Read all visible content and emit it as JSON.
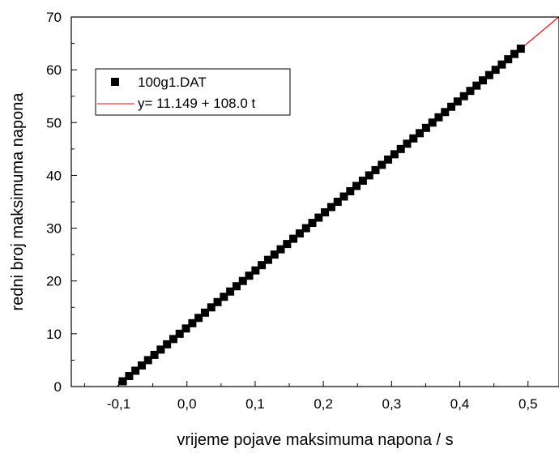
{
  "chart_data": {
    "type": "scatter",
    "xlabel": "vrijeme pojave maksimuma napona / s",
    "ylabel": "redni broj maksimuma napona",
    "xlim": [
      -0.1695,
      0.5454
    ],
    "ylim": [
      0,
      70
    ],
    "x_ticks": [
      -0.1,
      0.0,
      0.1,
      0.2,
      0.3,
      0.4,
      0.5
    ],
    "x_tick_labels": [
      "-0,1",
      "0,0",
      "0,1",
      "0,2",
      "0,3",
      "0,4",
      "0,5"
    ],
    "y_ticks": [
      0,
      10,
      20,
      30,
      40,
      50,
      60,
      70
    ],
    "y_tick_labels": [
      "0",
      "10",
      "20",
      "30",
      "40",
      "50",
      "60",
      "70"
    ],
    "grid": false,
    "legend_position": "top-left",
    "series": [
      {
        "name": "100g1.DAT",
        "kind": "scatter",
        "color": "#000000",
        "marker": "square",
        "x": [
          -0.094,
          -0.0847,
          -0.0755,
          -0.0662,
          -0.057,
          -0.0477,
          -0.0384,
          -0.0292,
          -0.0199,
          -0.0107,
          -0.0014,
          0.0079,
          0.0171,
          0.0264,
          0.0357,
          0.0449,
          0.0542,
          0.0634,
          0.0727,
          0.082,
          0.0912,
          0.1005,
          0.1097,
          0.119,
          0.1283,
          0.1375,
          0.1468,
          0.156,
          0.1653,
          0.1746,
          0.1838,
          0.1931,
          0.2023,
          0.2116,
          0.2209,
          0.2301,
          0.2394,
          0.2486,
          0.2579,
          0.2672,
          0.2764,
          0.2857,
          0.2949,
          0.3042,
          0.3135,
          0.3227,
          0.332,
          0.3412,
          0.3505,
          0.3598,
          0.369,
          0.3783,
          0.3875,
          0.3968,
          0.4061,
          0.4153,
          0.4246,
          0.4338,
          0.4431,
          0.4524,
          0.4616,
          0.4709,
          0.4801,
          0.4894
        ],
        "y": [
          1,
          2,
          3,
          4,
          5,
          6,
          7,
          8,
          9,
          10,
          11,
          12,
          13,
          14,
          15,
          16,
          17,
          18,
          19,
          20,
          21,
          22,
          23,
          24,
          25,
          26,
          27,
          28,
          29,
          30,
          31,
          32,
          33,
          34,
          35,
          36,
          37,
          38,
          39,
          40,
          41,
          42,
          43,
          44,
          45,
          46,
          47,
          48,
          49,
          50,
          51,
          52,
          53,
          54,
          55,
          56,
          57,
          58,
          59,
          60,
          61,
          62,
          63,
          64
        ]
      },
      {
        "name": "y= 11.149 + 108.0 t",
        "kind": "line",
        "color": "#ff0000",
        "intercept": 11.149,
        "slope": 108.0,
        "x_range": [
          -0.1032,
          0.5454
        ]
      }
    ]
  }
}
